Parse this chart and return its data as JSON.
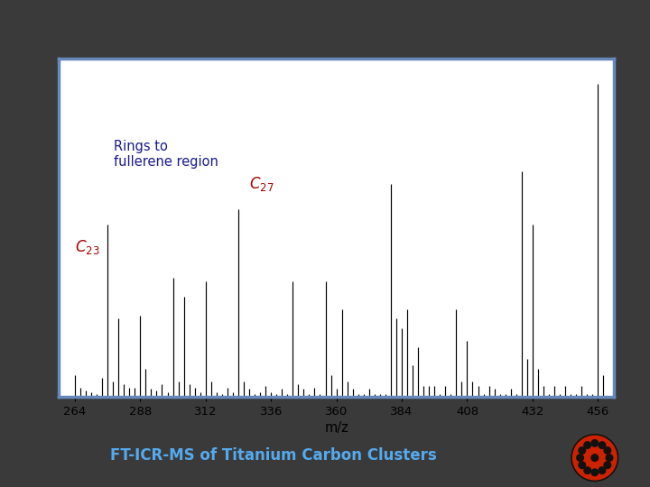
{
  "bg_color": "#3a3a3a",
  "panel_bg": "#ffffff",
  "panel_border_color": "#6688bb",
  "title_text": "FT-ICR-MS of Titanium Carbon Clusters",
  "title_color": "#55aaee",
  "annotation_rings": "Rings to\nfullerene region",
  "annotation_rings_color": "#1a1a8c",
  "label_color": "#aa0000",
  "xlabel": "m/z",
  "xlim": [
    258,
    462
  ],
  "ylim": [
    0,
    1.08
  ],
  "xticks": [
    264,
    288,
    312,
    336,
    360,
    384,
    408,
    432,
    456
  ],
  "peaks": [
    [
      264,
      0.07
    ],
    [
      266,
      0.03
    ],
    [
      268,
      0.02
    ],
    [
      270,
      0.015
    ],
    [
      272,
      0.01
    ],
    [
      274,
      0.06
    ],
    [
      276,
      0.55
    ],
    [
      278,
      0.05
    ],
    [
      280,
      0.25
    ],
    [
      282,
      0.04
    ],
    [
      284,
      0.03
    ],
    [
      286,
      0.03
    ],
    [
      288,
      0.26
    ],
    [
      290,
      0.09
    ],
    [
      292,
      0.025
    ],
    [
      294,
      0.02
    ],
    [
      296,
      0.04
    ],
    [
      298,
      0.015
    ],
    [
      300,
      0.38
    ],
    [
      302,
      0.05
    ],
    [
      304,
      0.32
    ],
    [
      306,
      0.04
    ],
    [
      308,
      0.03
    ],
    [
      310,
      0.015
    ],
    [
      312,
      0.37
    ],
    [
      314,
      0.05
    ],
    [
      316,
      0.015
    ],
    [
      318,
      0.01
    ],
    [
      320,
      0.03
    ],
    [
      322,
      0.015
    ],
    [
      324,
      0.6
    ],
    [
      326,
      0.05
    ],
    [
      328,
      0.025
    ],
    [
      330,
      0.01
    ],
    [
      332,
      0.015
    ],
    [
      334,
      0.035
    ],
    [
      336,
      0.015
    ],
    [
      338,
      0.01
    ],
    [
      340,
      0.025
    ],
    [
      342,
      0.01
    ],
    [
      344,
      0.37
    ],
    [
      346,
      0.04
    ],
    [
      348,
      0.025
    ],
    [
      350,
      0.01
    ],
    [
      352,
      0.03
    ],
    [
      354,
      0.01
    ],
    [
      356,
      0.37
    ],
    [
      358,
      0.07
    ],
    [
      360,
      0.025
    ],
    [
      362,
      0.28
    ],
    [
      364,
      0.05
    ],
    [
      366,
      0.025
    ],
    [
      368,
      0.01
    ],
    [
      370,
      0.01
    ],
    [
      372,
      0.025
    ],
    [
      374,
      0.01
    ],
    [
      376,
      0.01
    ],
    [
      378,
      0.01
    ],
    [
      380,
      0.68
    ],
    [
      382,
      0.25
    ],
    [
      384,
      0.22
    ],
    [
      386,
      0.28
    ],
    [
      388,
      0.1
    ],
    [
      390,
      0.16
    ],
    [
      392,
      0.035
    ],
    [
      394,
      0.035
    ],
    [
      396,
      0.035
    ],
    [
      398,
      0.01
    ],
    [
      400,
      0.035
    ],
    [
      402,
      0.01
    ],
    [
      404,
      0.28
    ],
    [
      406,
      0.05
    ],
    [
      408,
      0.18
    ],
    [
      410,
      0.05
    ],
    [
      412,
      0.035
    ],
    [
      414,
      0.01
    ],
    [
      416,
      0.035
    ],
    [
      418,
      0.025
    ],
    [
      420,
      0.01
    ],
    [
      422,
      0.01
    ],
    [
      424,
      0.025
    ],
    [
      426,
      0.01
    ],
    [
      428,
      0.72
    ],
    [
      430,
      0.12
    ],
    [
      432,
      0.55
    ],
    [
      434,
      0.09
    ],
    [
      436,
      0.035
    ],
    [
      438,
      0.01
    ],
    [
      440,
      0.035
    ],
    [
      442,
      0.01
    ],
    [
      444,
      0.035
    ],
    [
      446,
      0.01
    ],
    [
      448,
      0.01
    ],
    [
      450,
      0.035
    ],
    [
      452,
      0.01
    ],
    [
      454,
      0.01
    ],
    [
      456,
      1.0
    ],
    [
      458,
      0.07
    ]
  ],
  "c27_mz": 324,
  "c27_intensity": 0.6,
  "c23_mz": 276,
  "c23_intensity": 0.55
}
